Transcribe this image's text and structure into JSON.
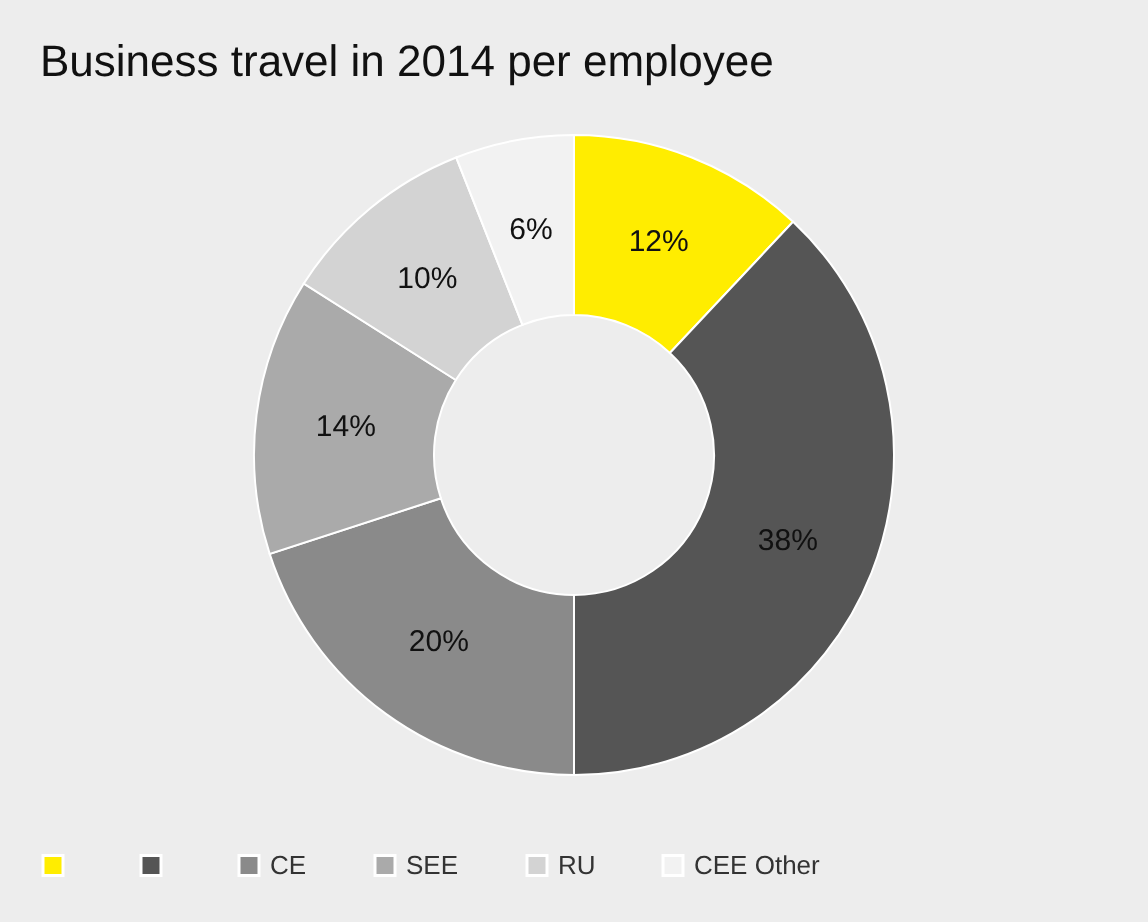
{
  "chart_data": {
    "type": "donut",
    "title": "Business travel in 2014 per employee",
    "categories": [
      null,
      null,
      "CE",
      "SEE",
      "RU",
      "CEE Other"
    ],
    "values": [
      12,
      38,
      20,
      14,
      10,
      6
    ],
    "value_labels": [
      "12%",
      "38%",
      "20%",
      "14%",
      "10%",
      "6%"
    ],
    "colors": [
      "#ffed00",
      "#555555",
      "#8a8a8a",
      "#aaaaaa",
      "#d3d3d3",
      "#f2f2f2"
    ],
    "legend": "bottom"
  }
}
